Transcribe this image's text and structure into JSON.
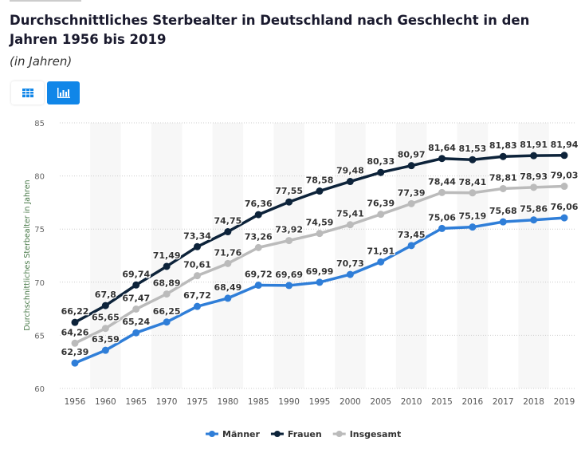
{
  "header": {
    "title": "Durchschnittliches Sterbealter in Deutschland nach Geschlecht in den Jahren 1956 bis 2019",
    "subtitle": "(in Jahren)"
  },
  "toolbar": {
    "table_icon": "table-icon",
    "chart_icon": "bar-chart-icon",
    "active": "chart"
  },
  "chart_data": {
    "type": "line",
    "title": "",
    "xlabel": "",
    "ylabel": "Durchschnittliches Sterbealter in Jahren",
    "ylim": [
      60,
      85
    ],
    "yticks": [
      60,
      65,
      70,
      75,
      80,
      85
    ],
    "grid": true,
    "legend_position": "bottom",
    "categories": [
      "1956",
      "1960",
      "1965",
      "1970",
      "1975",
      "1980",
      "1985",
      "1990",
      "1995",
      "2000",
      "2005",
      "2010",
      "2015",
      "2016",
      "2017",
      "2018",
      "2019"
    ],
    "series": [
      {
        "name": "Männer",
        "color": "#2f7ed8",
        "values": [
          62.39,
          63.59,
          65.24,
          66.25,
          67.72,
          68.49,
          69.72,
          69.69,
          69.99,
          70.73,
          71.91,
          73.45,
          75.06,
          75.19,
          75.68,
          75.86,
          76.06
        ]
      },
      {
        "name": "Frauen",
        "color": "#0d233a",
        "values": [
          66.22,
          67.8,
          69.74,
          71.49,
          73.34,
          74.75,
          76.36,
          77.55,
          78.58,
          79.48,
          80.33,
          80.97,
          81.64,
          81.53,
          81.83,
          81.91,
          81.94
        ]
      },
      {
        "name": "Insgesamt",
        "color": "#bbbbbb",
        "values": [
          64.26,
          65.65,
          67.47,
          68.89,
          70.61,
          71.76,
          73.26,
          73.92,
          74.59,
          75.41,
          76.39,
          77.39,
          78.44,
          78.41,
          78.81,
          78.93,
          79.03
        ]
      }
    ]
  }
}
